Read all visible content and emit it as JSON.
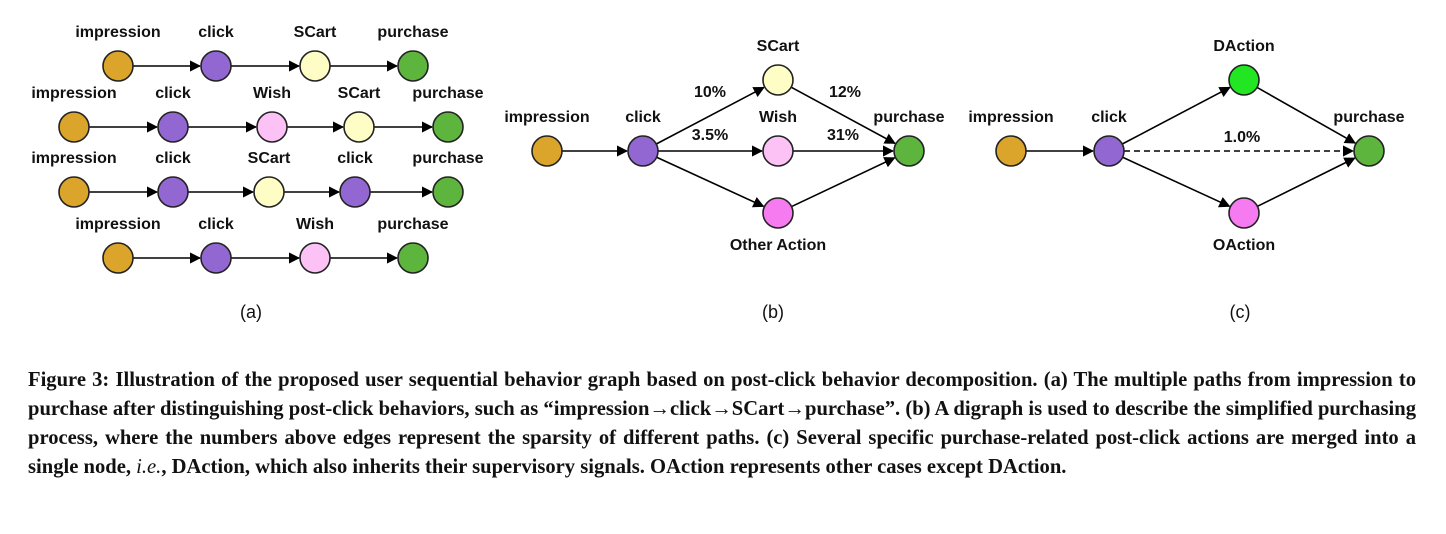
{
  "colors": {
    "impression": "#DAA52A",
    "click": "#9367D1",
    "SCart": "#FEFDC6",
    "Wish": "#FCC2F6",
    "purchase": "#5DB53D",
    "DAction": "#23E623",
    "OAction": "#F67AF0",
    "Other Action": "#F67AF0"
  },
  "panel_a": {
    "label": "(a)",
    "paths": [
      [
        "impression",
        "click",
        "SCart",
        "purchase"
      ],
      [
        "impression",
        "click",
        "Wish",
        "SCart",
        "purchase"
      ],
      [
        "impression",
        "click",
        "SCart",
        "click",
        "purchase"
      ],
      [
        "impression",
        "click",
        "Wish",
        "purchase"
      ]
    ]
  },
  "panel_b": {
    "label": "(b)",
    "nodes": {
      "impression": "impression",
      "click": "click",
      "scart": "SCart",
      "wish": "Wish",
      "other": "Other Action",
      "purchase": "purchase"
    },
    "edge_labels": {
      "click_scart": "10%",
      "click_wish": "3.5%",
      "scart_purchase": "12%",
      "wish_purchase": "31%"
    }
  },
  "panel_c": {
    "label": "(c)",
    "nodes": {
      "impression": "impression",
      "click": "click",
      "daction": "DAction",
      "oaction": "OAction",
      "purchase": "purchase"
    },
    "edge_labels": {
      "click_purchase": "1.0%"
    }
  },
  "caption": {
    "prefix": "Figure 3: Illustration of the proposed user sequential behavior graph based on post-click behavior decomposition. (a) The multiple paths from impression to purchase after distinguishing post-click behaviors, such as “impression→click→SCart→purchase”. (b) A digraph is used to describe the simplified purchasing process, where the numbers above edges represent the sparsity of different paths. (c) Several specific purchase-related post-click actions are merged into a single node, ",
    "italic": "i.e.",
    "suffix": ", DAction, which also inherits their supervisory signals. OAction represents other cases except DAction."
  }
}
